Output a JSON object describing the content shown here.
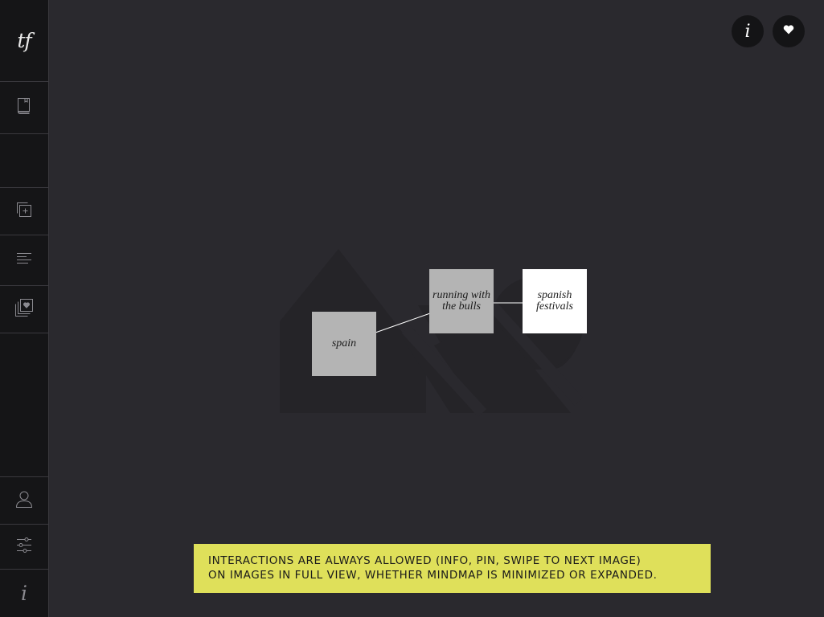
{
  "sidebar": {
    "logo": "tf",
    "icons": [
      "book-icon",
      "add-copy-icon",
      "text-lines-icon",
      "pinned-stack-icon",
      "profile-icon",
      "sliders-icon"
    ],
    "info_glyph": "i"
  },
  "top_bar": {
    "info_glyph": "i",
    "heart_glyph": "❤"
  },
  "mindmap": {
    "nodes": [
      {
        "label": "spain"
      },
      {
        "label": "running with the bulls"
      },
      {
        "label": "spanish festivals"
      }
    ]
  },
  "note": {
    "line1": "INTERACTIONS ARE ALWAYS ALLOWED (INFO, PIN, SWIPE TO NEXT IMAGE)",
    "line2": "ON IMAGES IN FULL VIEW, WHETHER MINDMAP IS MINIMIZED OR EXPANDED."
  },
  "colors": {
    "background": "#2a292e",
    "sidebar": "#151517",
    "node_grey": "#b4b4b4",
    "node_white": "#ffffff",
    "note": "#dfe05a"
  }
}
